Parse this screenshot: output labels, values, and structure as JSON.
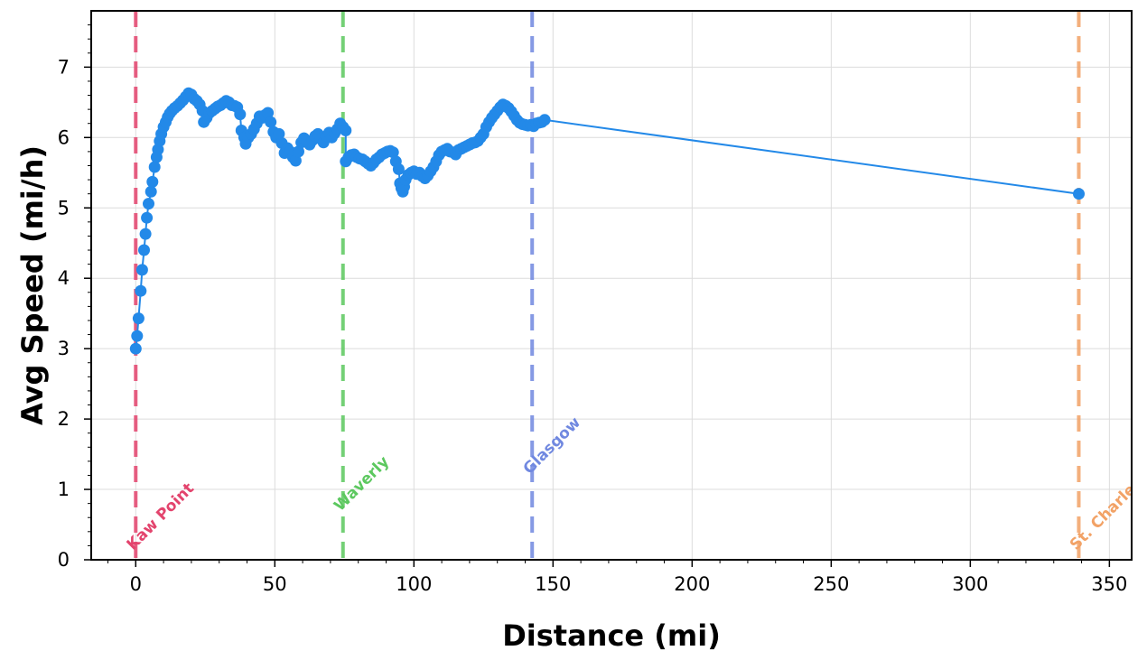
{
  "chart_data": {
    "type": "line",
    "xlabel": "Distance (mi)",
    "ylabel": "Avg Speed (mi/h)",
    "xlim": [
      -16,
      358
    ],
    "ylim": [
      0,
      7.8
    ],
    "x_ticks": [
      0,
      50,
      100,
      150,
      200,
      250,
      300,
      350
    ],
    "y_ticks": [
      0,
      1,
      2,
      3,
      4,
      5,
      6,
      7
    ],
    "grid": true,
    "series_color": "#2389e8",
    "markers": true,
    "points": [
      [
        0,
        3.0
      ],
      [
        0.5,
        3.18
      ],
      [
        1,
        3.43
      ],
      [
        1.8,
        3.82
      ],
      [
        2.3,
        4.12
      ],
      [
        3,
        4.4
      ],
      [
        3.5,
        4.63
      ],
      [
        4,
        4.86
      ],
      [
        4.6,
        5.06
      ],
      [
        5.5,
        5.23
      ],
      [
        6,
        5.37
      ],
      [
        6.8,
        5.58
      ],
      [
        7.5,
        5.72
      ],
      [
        8,
        5.83
      ],
      [
        8.6,
        5.95
      ],
      [
        9.2,
        6.05
      ],
      [
        10,
        6.15
      ],
      [
        10.8,
        6.22
      ],
      [
        11.5,
        6.29
      ],
      [
        12.2,
        6.34
      ],
      [
        13,
        6.38
      ],
      [
        14,
        6.42
      ],
      [
        15,
        6.45
      ],
      [
        16,
        6.49
      ],
      [
        17,
        6.53
      ],
      [
        18,
        6.58
      ],
      [
        19,
        6.63
      ],
      [
        20,
        6.61
      ],
      [
        21,
        6.55
      ],
      [
        22,
        6.52
      ],
      [
        23,
        6.47
      ],
      [
        24,
        6.38
      ],
      [
        24.5,
        6.22
      ],
      [
        25.5,
        6.28
      ],
      [
        26.5,
        6.35
      ],
      [
        27.5,
        6.38
      ],
      [
        28.5,
        6.41
      ],
      [
        29.5,
        6.44
      ],
      [
        30.5,
        6.46
      ],
      [
        31.5,
        6.49
      ],
      [
        32.5,
        6.52
      ],
      [
        33.5,
        6.5
      ],
      [
        34.5,
        6.46
      ],
      [
        35.5,
        6.45
      ],
      [
        36.5,
        6.43
      ],
      [
        37.5,
        6.33
      ],
      [
        38,
        6.1
      ],
      [
        39,
        6.0
      ],
      [
        39.5,
        5.91
      ],
      [
        40.5,
        6.0
      ],
      [
        41.5,
        6.05
      ],
      [
        42.5,
        6.12
      ],
      [
        43.5,
        6.2
      ],
      [
        44.5,
        6.3
      ],
      [
        45.5,
        6.28
      ],
      [
        46.5,
        6.32
      ],
      [
        47.5,
        6.35
      ],
      [
        48.5,
        6.22
      ],
      [
        49.5,
        6.08
      ],
      [
        50.5,
        6.0
      ],
      [
        51.5,
        6.05
      ],
      [
        52.5,
        5.92
      ],
      [
        53.5,
        5.78
      ],
      [
        54.5,
        5.85
      ],
      [
        55.5,
        5.8
      ],
      [
        56.5,
        5.72
      ],
      [
        57.5,
        5.67
      ],
      [
        58.5,
        5.8
      ],
      [
        59.5,
        5.93
      ],
      [
        60.5,
        5.99
      ],
      [
        61.5,
        5.95
      ],
      [
        62.5,
        5.9
      ],
      [
        63.5,
        5.96
      ],
      [
        64.5,
        6.02
      ],
      [
        65.5,
        6.05
      ],
      [
        66.5,
        5.98
      ],
      [
        67.5,
        5.93
      ],
      [
        68.5,
        6.02
      ],
      [
        69.5,
        6.07
      ],
      [
        70.5,
        6.0
      ],
      [
        71.5,
        6.06
      ],
      [
        72.5,
        6.12
      ],
      [
        73.5,
        6.2
      ],
      [
        74.5,
        6.15
      ],
      [
        75.5,
        6.1
      ],
      [
        75.5,
        5.66
      ],
      [
        76.5,
        5.72
      ],
      [
        77.5,
        5.75
      ],
      [
        78.5,
        5.76
      ],
      [
        79.5,
        5.72
      ],
      [
        80.5,
        5.7
      ],
      [
        81.5,
        5.69
      ],
      [
        82.5,
        5.66
      ],
      [
        83.5,
        5.63
      ],
      [
        84.5,
        5.6
      ],
      [
        85.5,
        5.64
      ],
      [
        86.5,
        5.69
      ],
      [
        87.5,
        5.72
      ],
      [
        88.5,
        5.76
      ],
      [
        89.5,
        5.78
      ],
      [
        90.5,
        5.8
      ],
      [
        91.5,
        5.81
      ],
      [
        92.5,
        5.79
      ],
      [
        93.5,
        5.66
      ],
      [
        94.5,
        5.55
      ],
      [
        95,
        5.35
      ],
      [
        95.5,
        5.28
      ],
      [
        96,
        5.23
      ],
      [
        96.5,
        5.3
      ],
      [
        97,
        5.4
      ],
      [
        98,
        5.47
      ],
      [
        99,
        5.5
      ],
      [
        100,
        5.52
      ],
      [
        101,
        5.48
      ],
      [
        102,
        5.5
      ],
      [
        103,
        5.45
      ],
      [
        104,
        5.42
      ],
      [
        105,
        5.46
      ],
      [
        106,
        5.52
      ],
      [
        107,
        5.58
      ],
      [
        108,
        5.66
      ],
      [
        109,
        5.75
      ],
      [
        110,
        5.8
      ],
      [
        111,
        5.82
      ],
      [
        112,
        5.84
      ],
      [
        113,
        5.8
      ],
      [
        114,
        5.79
      ],
      [
        115,
        5.76
      ],
      [
        116,
        5.82
      ],
      [
        117,
        5.84
      ],
      [
        118,
        5.86
      ],
      [
        119,
        5.88
      ],
      [
        120,
        5.9
      ],
      [
        121,
        5.92
      ],
      [
        122,
        5.93
      ],
      [
        123,
        5.95
      ],
      [
        124,
        6.0
      ],
      [
        125,
        6.05
      ],
      [
        126,
        6.15
      ],
      [
        127,
        6.22
      ],
      [
        128,
        6.28
      ],
      [
        129,
        6.33
      ],
      [
        130,
        6.38
      ],
      [
        131,
        6.43
      ],
      [
        132,
        6.47
      ],
      [
        133,
        6.45
      ],
      [
        134,
        6.42
      ],
      [
        135,
        6.37
      ],
      [
        136,
        6.31
      ],
      [
        137,
        6.25
      ],
      [
        138,
        6.21
      ],
      [
        139,
        6.19
      ],
      [
        140,
        6.18
      ],
      [
        141,
        6.17
      ],
      [
        142,
        6.18
      ],
      [
        143,
        6.16
      ],
      [
        144,
        6.2
      ],
      [
        145,
        6.21
      ],
      [
        146,
        6.22
      ],
      [
        147,
        6.25
      ],
      [
        339,
        5.2
      ]
    ],
    "stops": [
      {
        "name": "Kaw Point",
        "x": 0,
        "color": "#e3446d"
      },
      {
        "name": "Waverly",
        "x": 74.5,
        "color": "#5cc85f"
      },
      {
        "name": "Glasgow",
        "x": 142.5,
        "color": "#7088e0"
      },
      {
        "name": "St. Charles",
        "x": 339,
        "color": "#f2a266"
      }
    ]
  }
}
